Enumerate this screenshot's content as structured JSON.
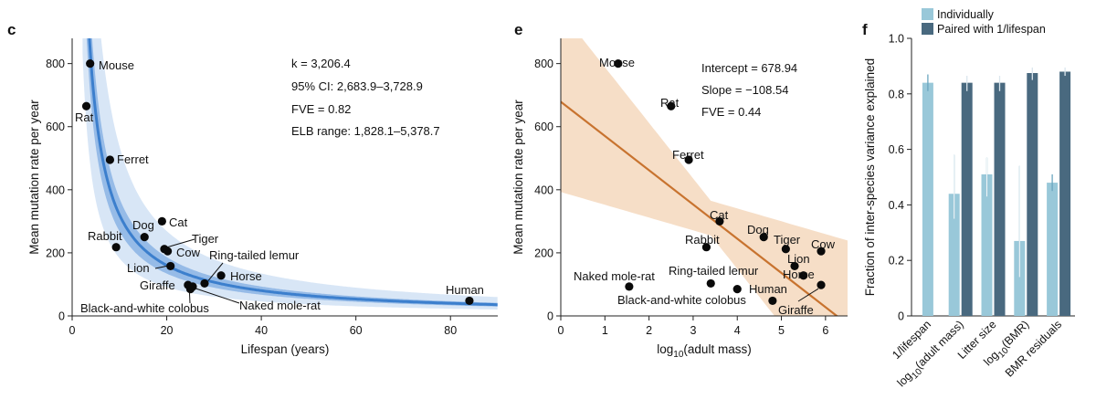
{
  "chart_data": [
    {
      "panel": "c",
      "type": "scatter",
      "xlabel": "Lifespan (years)",
      "ylabel": "Mean mutation rate per year",
      "xlim": [
        0,
        90
      ],
      "ylim": [
        0,
        880
      ],
      "xticks": [
        0,
        20,
        40,
        60,
        80
      ],
      "yticks": [
        0,
        200,
        400,
        600,
        800
      ],
      "fit": {
        "type": "k/lifespan",
        "k": 3206.4,
        "ci": [
          2683.9,
          3728.9
        ],
        "elb": [
          1828.1,
          5378.7
        ]
      },
      "annotations": [
        "k = 3,206.4",
        "95% CI: 2,683.9–3,728.9",
        "FVE = 0.82",
        "ELB range: 1,828.1–5,378.7"
      ],
      "points": [
        {
          "label": "Mouse",
          "x": 3.8,
          "y": 800
        },
        {
          "label": "Rat",
          "x": 3.0,
          "y": 665
        },
        {
          "label": "Ferret",
          "x": 8.0,
          "y": 495
        },
        {
          "label": "Cat",
          "x": 19.0,
          "y": 300
        },
        {
          "label": "Dog",
          "x": 15.3,
          "y": 250
        },
        {
          "label": "Rabbit",
          "x": 9.3,
          "y": 218
        },
        {
          "label": "Tiger",
          "x": 19.5,
          "y": 212
        },
        {
          "label": "Cow",
          "x": 20.2,
          "y": 205
        },
        {
          "label": "Lion",
          "x": 20.8,
          "y": 158
        },
        {
          "label": "Ring-tailed lemur",
          "x": 28.0,
          "y": 103
        },
        {
          "label": "Horse",
          "x": 31.5,
          "y": 128
        },
        {
          "label": "Giraffe",
          "x": 24.5,
          "y": 98
        },
        {
          "label": "Black-and-white colobus",
          "x": 25.0,
          "y": 85
        },
        {
          "label": "Naked mole-rat",
          "x": 25.5,
          "y": 93
        },
        {
          "label": "Human",
          "x": 84.0,
          "y": 48
        }
      ]
    },
    {
      "panel": "e",
      "type": "scatter",
      "xlabel": "log10(adult mass)",
      "ylabel": "Mean mutation rate per year",
      "xlim": [
        0,
        6.5
      ],
      "ylim": [
        0,
        880
      ],
      "xticks": [
        0,
        1,
        2,
        3,
        4,
        5,
        6
      ],
      "yticks": [
        0,
        200,
        400,
        600,
        800
      ],
      "fit": {
        "type": "linear",
        "intercept": 678.94,
        "slope": -108.54
      },
      "annotations": [
        "Intercept = 678.94",
        "Slope = −108.54",
        "FVE = 0.44"
      ],
      "points": [
        {
          "label": "Mouse",
          "x": 1.3,
          "y": 800
        },
        {
          "label": "Rat",
          "x": 2.5,
          "y": 665
        },
        {
          "label": "Ferret",
          "x": 2.9,
          "y": 495
        },
        {
          "label": "Cat",
          "x": 3.6,
          "y": 300
        },
        {
          "label": "Dog",
          "x": 4.6,
          "y": 250
        },
        {
          "label": "Rabbit",
          "x": 3.3,
          "y": 218
        },
        {
          "label": "Tiger",
          "x": 5.1,
          "y": 212
        },
        {
          "label": "Cow",
          "x": 5.9,
          "y": 205
        },
        {
          "label": "Lion",
          "x": 5.3,
          "y": 158
        },
        {
          "label": "Horse",
          "x": 5.5,
          "y": 128
        },
        {
          "label": "Naked mole-rat",
          "x": 1.55,
          "y": 93
        },
        {
          "label": "Ring-tailed lemur",
          "x": 3.4,
          "y": 103
        },
        {
          "label": "Black-and-white colobus",
          "x": 4.0,
          "y": 85
        },
        {
          "label": "Human",
          "x": 4.8,
          "y": 48
        },
        {
          "label": "Giraffe",
          "x": 5.9,
          "y": 98
        }
      ]
    },
    {
      "panel": "f",
      "type": "bar",
      "ylabel": "Fraction of inter-species variance explained",
      "ylim": [
        0,
        1.0
      ],
      "yticks": [
        "0",
        "0.2",
        "0.4",
        "0.6",
        "0.8",
        "1.0"
      ],
      "categories": [
        "1/lifespan",
        "log10(adult mass)",
        "Litter size",
        "log10(BMR)",
        "BMR residuals"
      ],
      "legend": [
        "Individually",
        "Paired with 1/lifespan"
      ],
      "series": [
        {
          "name": "Individually",
          "color": "#99c8d9",
          "values": [
            0.84,
            0.44,
            0.51,
            0.27,
            0.48
          ],
          "err_low": [
            0.81,
            0.35,
            0.43,
            0.14,
            0.45
          ],
          "err_high": [
            0.87,
            0.58,
            0.57,
            0.54,
            0.51
          ]
        },
        {
          "name": "Paired with 1/lifespan",
          "color": "#49697f",
          "values": [
            null,
            0.84,
            0.84,
            0.875,
            0.88
          ],
          "err_low": [
            null,
            0.81,
            0.81,
            0.85,
            0.865
          ],
          "err_high": [
            null,
            0.865,
            0.865,
            0.895,
            0.895
          ]
        }
      ]
    }
  ]
}
